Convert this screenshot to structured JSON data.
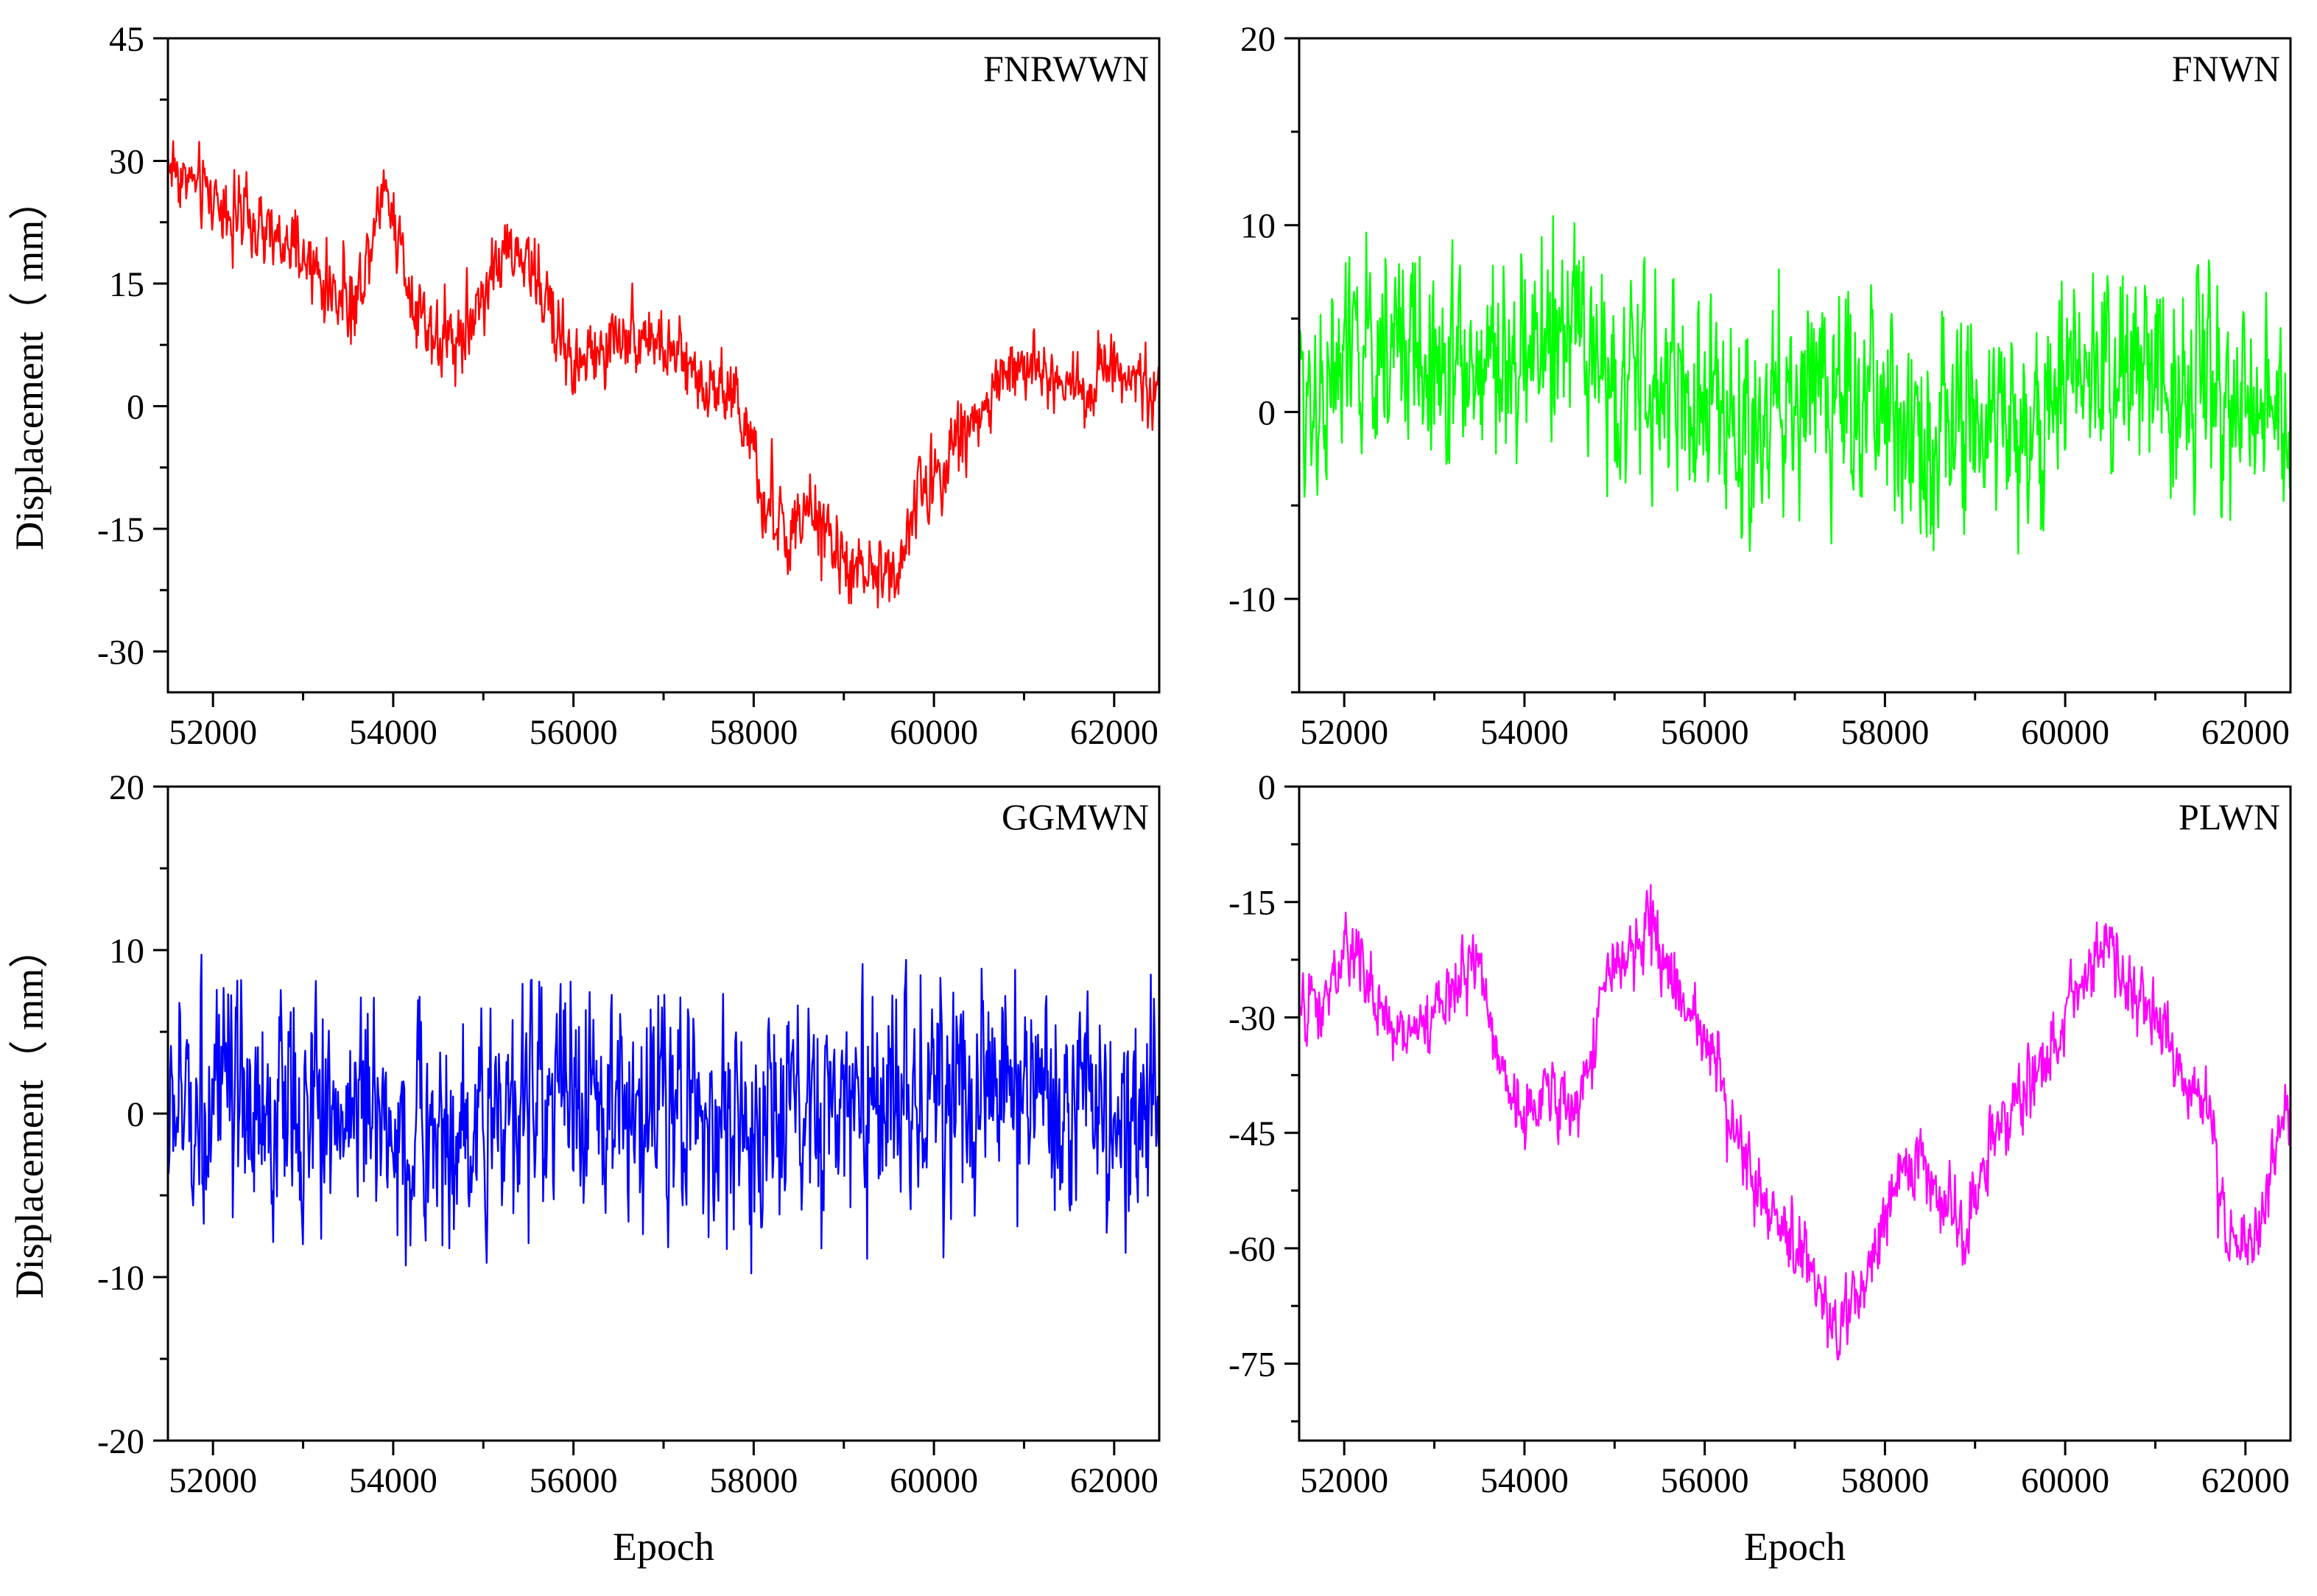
{
  "chart_data": [
    {
      "type": "line",
      "label": "FNRWWN",
      "xlabel": "",
      "ylabel": "Displacement（ mm）",
      "xlim": [
        51500,
        62500
      ],
      "ylim": [
        -35,
        45
      ],
      "xticks": [
        52000,
        54000,
        56000,
        58000,
        60000,
        62000
      ],
      "yticks": [
        -30,
        -15,
        0,
        15,
        30,
        45
      ],
      "grid": false,
      "color": "#ff0000",
      "series": [
        {
          "x": [
            51500,
            51800,
            52100,
            52400,
            52700,
            53000,
            53300,
            53600,
            53900,
            54200,
            54500,
            54800,
            55100,
            55400,
            55700,
            56000,
            56300,
            56600,
            56900,
            57200,
            57500,
            57800,
            58100,
            58400,
            58700,
            59000,
            59300,
            59600,
            59900,
            60200,
            60500,
            60800,
            61100,
            61400,
            61700,
            62000,
            62300,
            62500
          ],
          "values": [
            30,
            27,
            25,
            22,
            20,
            18,
            14,
            13,
            28,
            14,
            8,
            9,
            17,
            19,
            13,
            5,
            6,
            10,
            8,
            5,
            3,
            2,
            -12,
            -16,
            -13,
            -20,
            -21,
            -19,
            -10,
            -5,
            -1,
            4,
            5,
            3,
            2,
            6,
            3,
            1
          ],
          "noise": 5
        }
      ]
    },
    {
      "type": "line",
      "label": "FNWN",
      "xlabel": "",
      "ylabel": "",
      "xlim": [
        51500,
        62500
      ],
      "ylim": [
        -15,
        20
      ],
      "xticks": [
        52000,
        54000,
        56000,
        58000,
        60000,
        62000
      ],
      "yticks": [
        -10,
        0,
        10,
        20
      ],
      "grid": false,
      "color": "#00ff00",
      "series": [
        {
          "x": [
            51500,
            52000,
            52500,
            53000,
            53500,
            54000,
            54500,
            55000,
            55500,
            56000,
            56500,
            57000,
            57500,
            58000,
            58500,
            59000,
            59500,
            60000,
            60500,
            61000,
            61500,
            62000,
            62500
          ],
          "values": [
            1,
            2,
            4,
            3,
            2,
            3,
            4,
            2,
            1,
            1,
            -1,
            1,
            1,
            0,
            -1,
            -1,
            -1,
            1,
            3,
            2,
            2,
            1,
            -1
          ],
          "noise": 6
        }
      ]
    },
    {
      "type": "line",
      "label": "GGMWN",
      "xlabel": "Epoch",
      "ylabel": "Displacement（ mm）",
      "xlim": [
        51500,
        62500
      ],
      "ylim": [
        -20,
        20
      ],
      "xticks": [
        52000,
        54000,
        56000,
        58000,
        60000,
        62000
      ],
      "yticks": [
        -20,
        -10,
        0,
        10,
        20
      ],
      "grid": false,
      "color": "#0000ff",
      "series": [
        {
          "x": [
            51500,
            52000,
            52500,
            53000,
            53500,
            54000,
            54500,
            55000,
            55500,
            56000,
            56500,
            57000,
            57500,
            58000,
            58500,
            59000,
            59500,
            60000,
            60500,
            61000,
            61500,
            62000,
            62500
          ],
          "values": [
            0,
            1,
            -1,
            0,
            1,
            -1,
            -2,
            0,
            1,
            0,
            1,
            1,
            0,
            -1,
            -1,
            0,
            1,
            1,
            2,
            1,
            0,
            -1,
            1
          ],
          "noise": 7.5
        }
      ]
    },
    {
      "type": "line",
      "label": "PLWN",
      "xlabel": "Epoch",
      "ylabel": "",
      "xlim": [
        51500,
        62500
      ],
      "ylim": [
        -85,
        0
      ],
      "xticks": [
        52000,
        54000,
        56000,
        58000,
        60000,
        62000
      ],
      "yticks": [
        -75,
        -60,
        -45,
        -30,
        -15,
        0
      ],
      "grid": false,
      "color": "#ff00ff",
      "series": [
        {
          "x": [
            51500,
            51800,
            52100,
            52400,
            52700,
            53000,
            53300,
            53500,
            53700,
            54000,
            54300,
            54600,
            54900,
            55200,
            55400,
            55700,
            56000,
            56300,
            56600,
            56900,
            57200,
            57400,
            57700,
            58000,
            58300,
            58600,
            58900,
            59200,
            59500,
            59800,
            60100,
            60400,
            60700,
            61000,
            61300,
            61600,
            61800,
            62100,
            62500
          ],
          "values": [
            -30,
            -28,
            -20,
            -30,
            -32,
            -30,
            -25,
            -22,
            -35,
            -42,
            -40,
            -42,
            -25,
            -22,
            -18,
            -28,
            -32,
            -42,
            -55,
            -58,
            -62,
            -70,
            -68,
            -55,
            -48,
            -53,
            -58,
            -45,
            -40,
            -35,
            -28,
            -20,
            -25,
            -30,
            -38,
            -42,
            -60,
            -58,
            -42
          ],
          "noise": 5
        }
      ]
    }
  ]
}
